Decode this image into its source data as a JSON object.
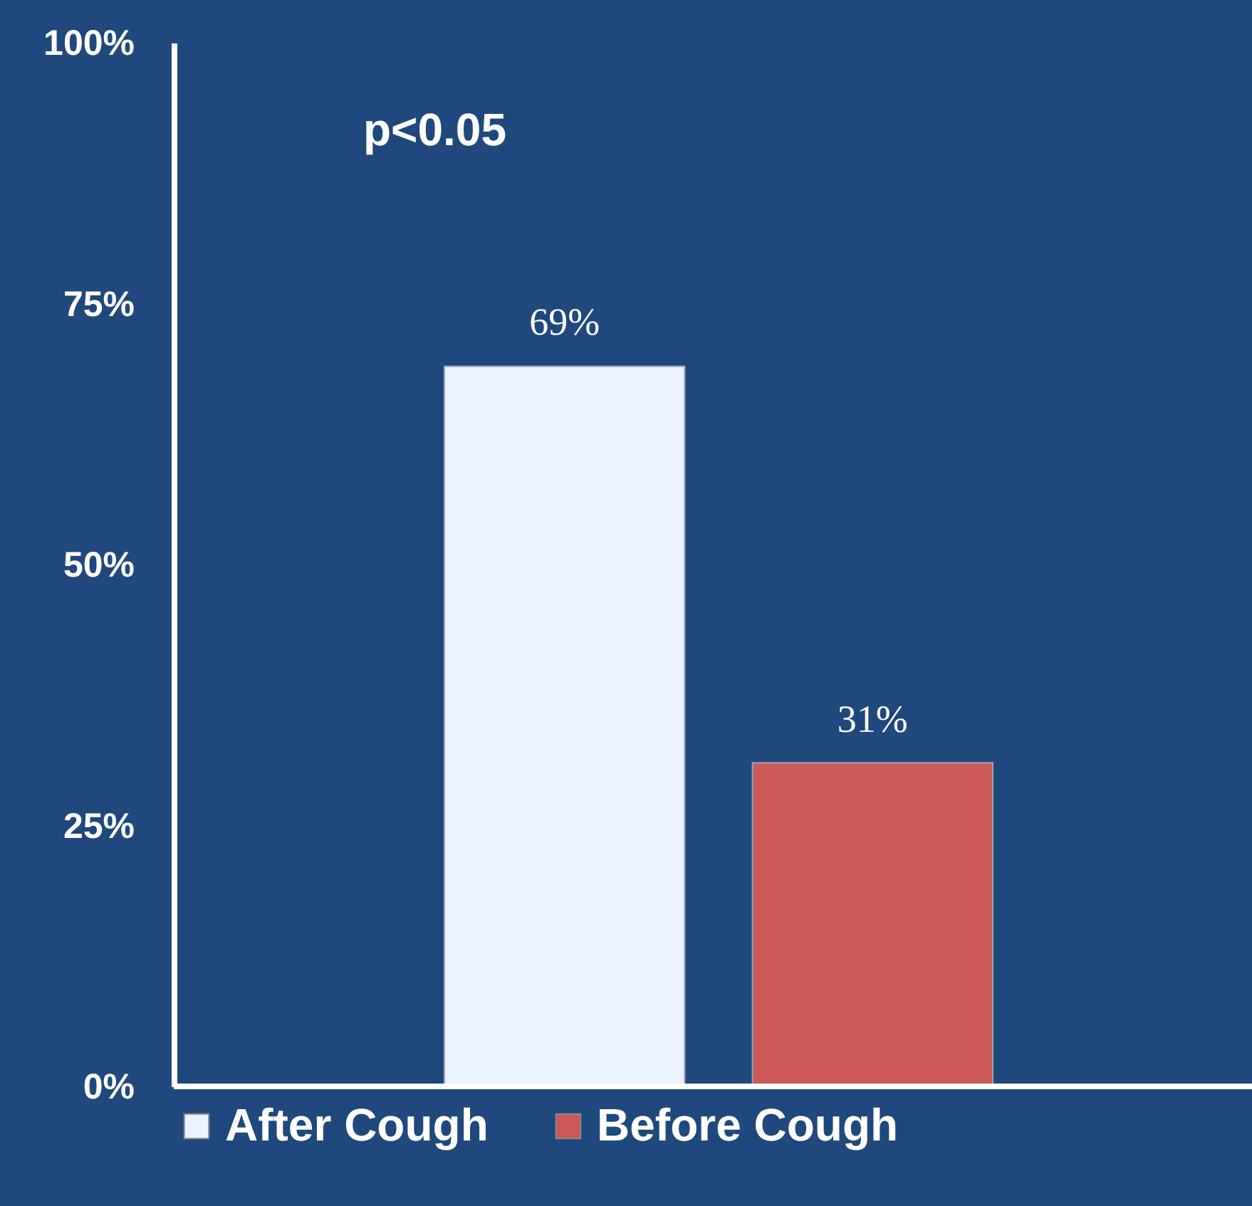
{
  "chart_data": {
    "type": "bar",
    "categories": [
      null
    ],
    "series": [
      {
        "name": "After Cough",
        "color": "#eaf3fd",
        "values": [
          69
        ],
        "value_labels": [
          "69%"
        ]
      },
      {
        "name": "Before Cough",
        "color": "#cd5858",
        "values": [
          31
        ],
        "value_labels": [
          "31%"
        ]
      }
    ],
    "ylim": [
      0,
      100
    ],
    "yticks": [
      {
        "value": 0,
        "label": "0%"
      },
      {
        "value": 25,
        "label": "25%"
      },
      {
        "value": 50,
        "label": "50%"
      },
      {
        "value": 75,
        "label": "75%"
      },
      {
        "value": 100,
        "label": "100%"
      }
    ],
    "annotations": [
      "p<0.05"
    ],
    "legend": "bottom",
    "grid": false
  }
}
